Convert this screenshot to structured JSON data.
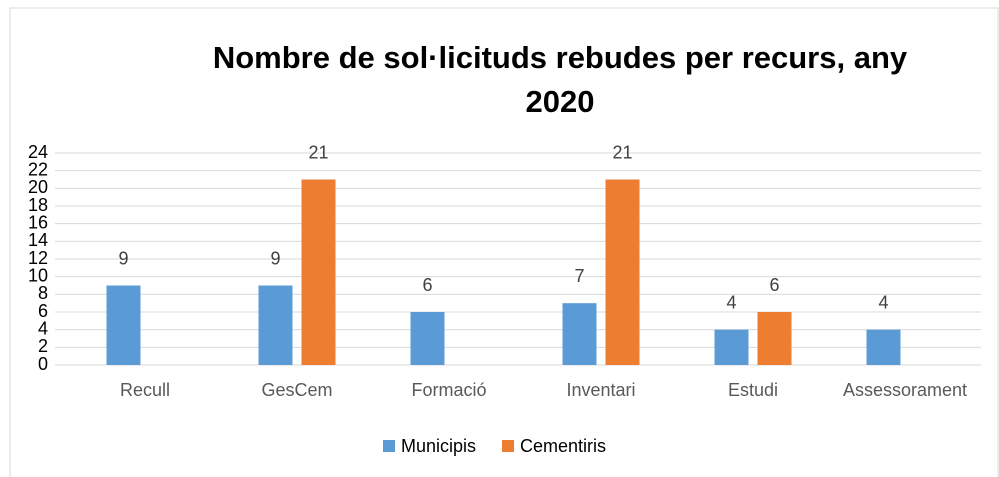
{
  "chart_data": {
    "type": "bar",
    "title": "Nombre de sol·licituds rebudes per recurs, any 2020",
    "categories": [
      "Recull",
      "GesCem",
      "Formació",
      "Inventari",
      "Estudi",
      "Assessorament"
    ],
    "series": [
      {
        "name": "Municipis",
        "color": "#5b9bd5",
        "values": [
          9,
          9,
          6,
          7,
          4,
          4
        ]
      },
      {
        "name": "Cementiris",
        "color": "#ed7d31",
        "values": [
          null,
          21,
          null,
          21,
          6,
          null
        ]
      }
    ],
    "ylim": [
      0,
      24
    ],
    "yticks": [
      0,
      2,
      4,
      6,
      8,
      10,
      12,
      14,
      16,
      18,
      20,
      22,
      24
    ],
    "grid": true,
    "legend": "bottom"
  }
}
